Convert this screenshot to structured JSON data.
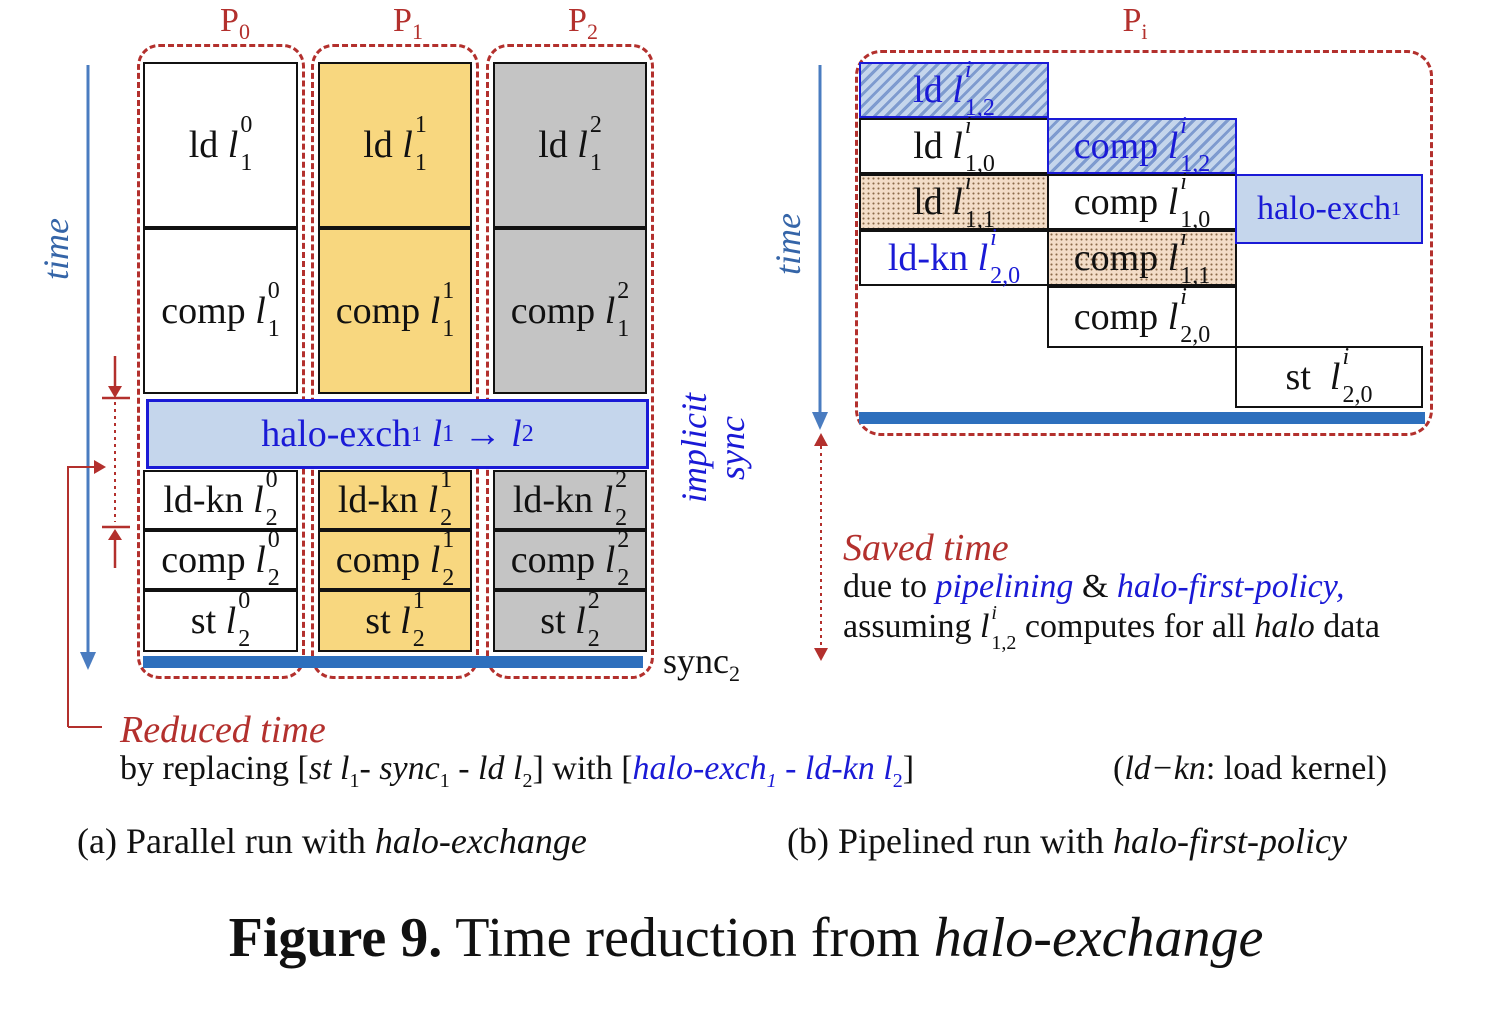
{
  "processors": [
    "P",
    "P",
    "P"
  ],
  "proc_subs": [
    "0",
    "1",
    "2"
  ],
  "pi_label": "P",
  "pi_sub": "i",
  "time_label": "time",
  "left": {
    "ld": "ld",
    "comp": "comp",
    "ldkn": "ld-kn",
    "st": "st",
    "var": "l",
    "row1_sub": "1",
    "row2_sub": "2",
    "halo_prefix": "halo-exch",
    "halo_sub": "1",
    "halo_l1": "l",
    "halo_l1_sub": "1",
    "arrow": "→",
    "halo_l2": "l",
    "halo_l2_sub": "2",
    "implicit": "implicit",
    "sync": "sync",
    "sync2_word": "sync",
    "sync2_sub": "2"
  },
  "right": {
    "ld": "ld",
    "comp": "comp",
    "ldkn": "ld-kn",
    "st": "st",
    "var": "l",
    "sup": "i",
    "sub_12": "1,2",
    "sub_10": "1,0",
    "sub_11": "1,1",
    "sub_20": "2,0",
    "halo": "halo-exch",
    "halo_sub": "1"
  },
  "reduced": {
    "title": "Reduced time",
    "by": "by replacing [",
    "st": "st",
    "l": "l",
    "one": "1",
    "dash1": "- ",
    "sync": "sync",
    "sync_sub": "1",
    "dash2": " - ",
    "ld": "ld",
    "two": "2",
    "with": "] with [",
    "halo": "halo-exch",
    "halo_sub": "1",
    "dash3": " - ",
    "ldkn": "ld-kn",
    "close": "]",
    "legend_open": "(",
    "legend_term": "ld−kn",
    "legend_rest": ": load kernel)"
  },
  "saved": {
    "title": "Saved time",
    "line1_a": "due to ",
    "line1_b": "pipelining",
    "line1_c": " & ",
    "line1_d": "halo-first-policy,",
    "line2_a": "assuming ",
    "line2_l": "l",
    "line2_sup": "i",
    "line2_sub": "1,2",
    "line2_b": " computes for all ",
    "line2_c": "halo",
    "line2_d": " data"
  },
  "caption_a": {
    "pre": "(a) Parallel run with ",
    "em": "halo-exchange"
  },
  "caption_b": {
    "pre": "(b) Pipelined run with ",
    "em": "halo-first-policy"
  },
  "figure": {
    "bold": "Figure 9.",
    "rest": " Time reduction from ",
    "em": "halo-exchange"
  },
  "colors": {
    "red": "#b3302d",
    "blue": "#1a1ad6",
    "bar": "#2d6fbd",
    "yellow": "#f8d77f",
    "gray": "#c4c4c4",
    "halo": "#c5d6ec"
  }
}
